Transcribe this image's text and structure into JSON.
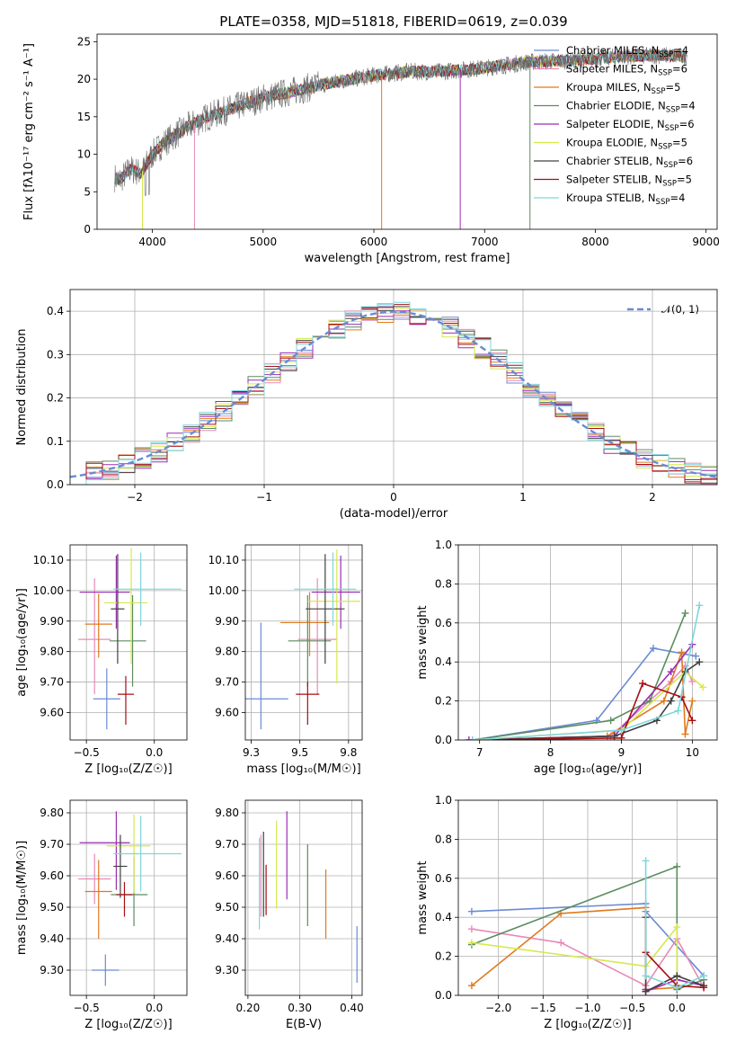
{
  "title": "PLATE=0358, MJD=51818, FIBERID=0619, z=0.039",
  "colors": [
    "#6a8bd4",
    "#e88ab8",
    "#e07a1f",
    "#5b8c5f",
    "#9a2fb5",
    "#d6e84a",
    "#404040",
    "#a50f14",
    "#7fd6dc"
  ],
  "legend": [
    {
      "label": "Chabrier MILES, N",
      "sub": "SSP",
      "suffix": "=4"
    },
    {
      "label": "Salpeter MILES, N",
      "sub": "SSP",
      "suffix": "=6"
    },
    {
      "label": "Kroupa MILES, N",
      "sub": "SSP",
      "suffix": "=5"
    },
    {
      "label": "Chabrier ELODIE, N",
      "sub": "SSP",
      "suffix": "=4"
    },
    {
      "label": "Salpeter ELODIE, N",
      "sub": "SSP",
      "suffix": "=6"
    },
    {
      "label": "Kroupa ELODIE, N",
      "sub": "SSP",
      "suffix": "=5"
    },
    {
      "label": "Chabrier STELIB, N",
      "sub": "SSP",
      "suffix": "=6"
    },
    {
      "label": "Salpeter STELIB, N",
      "sub": "SSP",
      "suffix": "=5"
    },
    {
      "label": "Kroupa STELIB, N",
      "sub": "SSP",
      "suffix": "=4"
    }
  ],
  "chart_data": [
    {
      "id": "spectrum",
      "type": "line",
      "xlabel": "wavelength [Angstrom, rest frame]",
      "ylabel": "Flux [fλ10⁻¹⁷ erg cm⁻² s⁻¹ A⁻¹]",
      "xlim": [
        3500,
        9100
      ],
      "ylim": [
        0,
        26
      ],
      "xticks": [
        4000,
        5000,
        6000,
        7000,
        8000,
        9000
      ],
      "yticks": [
        0,
        5,
        10,
        15,
        20,
        25
      ],
      "continuum": [
        [
          3650,
          7
        ],
        [
          3700,
          6.5
        ],
        [
          3800,
          8
        ],
        [
          3900,
          7.5
        ],
        [
          4000,
          10
        ],
        [
          4100,
          11.5
        ],
        [
          4300,
          13.5
        ],
        [
          4500,
          15
        ],
        [
          4700,
          16
        ],
        [
          5000,
          17.5
        ],
        [
          5300,
          18.5
        ],
        [
          5600,
          19.5
        ],
        [
          6000,
          20.5
        ],
        [
          6300,
          21
        ],
        [
          6600,
          21
        ],
        [
          7000,
          21.5
        ],
        [
          7400,
          22.3
        ],
        [
          7800,
          22.5
        ],
        [
          8200,
          23
        ],
        [
          8600,
          23.2
        ],
        [
          8830,
          23
        ]
      ]
    },
    {
      "id": "residuals",
      "type": "step",
      "xlabel": "(data-model)/error",
      "ylabel": "Normed distribution",
      "xlim": [
        -2.5,
        2.5
      ],
      "ylim": [
        0,
        0.45
      ],
      "xticks": [
        -2,
        -1,
        0,
        1,
        2
      ],
      "yticks": [
        0.0,
        0.1,
        0.2,
        0.3,
        0.4
      ],
      "gaussian_label": "𝒩(0, 1)"
    },
    {
      "id": "age-vs-Z",
      "type": "scatter",
      "xlabel": "Z [log₁₀(Z/Z☉)]",
      "ylabel": "age  [log₁₀(age/yr)]",
      "xlim": [
        -0.62,
        0.24
      ],
      "ylim": [
        9.51,
        10.15
      ],
      "xticks": [
        -0.5,
        0.0
      ],
      "yticks": [
        9.6,
        9.7,
        9.8,
        9.9,
        10.0,
        10.1
      ],
      "points": [
        {
          "x": -0.35,
          "y": 9.645,
          "xerr": [
            0.1,
            0.1
          ],
          "yerr": [
            0.1,
            0.1
          ]
        },
        {
          "x": -0.44,
          "y": 9.84,
          "xerr": [
            0.12,
            0.12
          ],
          "yerr": [
            0.18,
            0.2
          ]
        },
        {
          "x": -0.41,
          "y": 9.89,
          "xerr": [
            0.1,
            0.1
          ],
          "yerr": [
            0.11,
            0.1
          ]
        },
        {
          "x": -0.16,
          "y": 9.835,
          "xerr": [
            0.17,
            0.1
          ],
          "yerr": [
            0.15,
            0.15
          ]
        },
        {
          "x": -0.28,
          "y": 9.995,
          "xerr": [
            0.27,
            0.1
          ],
          "yerr": [
            0.12,
            0.12
          ]
        },
        {
          "x": -0.17,
          "y": 9.96,
          "xerr": [
            0.2,
            0.12
          ],
          "yerr": [
            0.2,
            0.18
          ]
        },
        {
          "x": -0.27,
          "y": 9.94,
          "xerr": [
            0.05,
            0.05
          ],
          "yerr": [
            0.18,
            0.18
          ]
        },
        {
          "x": -0.21,
          "y": 9.66,
          "xerr": [
            0.06,
            0.06
          ],
          "yerr": [
            0.1,
            0.06
          ]
        },
        {
          "x": -0.1,
          "y": 10.005,
          "xerr": [
            0.2,
            0.3
          ],
          "yerr": [
            0.12,
            0.12
          ]
        }
      ]
    },
    {
      "id": "age-vs-mass",
      "type": "scatter",
      "xlabel": "mass [log₁₀(M/M☉)]",
      "ylabel": "",
      "xlim": [
        9.22,
        9.82
      ],
      "ylim": [
        9.51,
        10.15
      ],
      "xticks": [
        9.25,
        9.5,
        9.75
      ],
      "yticks": [
        9.6,
        9.7,
        9.8,
        9.9,
        10.0,
        10.1
      ],
      "points": [
        {
          "x": 9.3,
          "y": 9.645,
          "xerr": [
            0.09,
            0.14
          ],
          "yerr": [
            0.1,
            0.25
          ]
        },
        {
          "x": 9.59,
          "y": 9.84,
          "xerr": [
            0.1,
            0.1
          ],
          "yerr": [
            0.18,
            0.2
          ]
        },
        {
          "x": 9.55,
          "y": 9.895,
          "xerr": [
            0.15,
            0.1
          ],
          "yerr": [
            0.11,
            0.1
          ]
        },
        {
          "x": 9.54,
          "y": 9.835,
          "xerr": [
            0.1,
            0.12
          ],
          "yerr": [
            0.15,
            0.15
          ]
        },
        {
          "x": 9.71,
          "y": 9.995,
          "xerr": [
            0.15,
            0.1
          ],
          "yerr": [
            0.12,
            0.12
          ]
        },
        {
          "x": 9.69,
          "y": 9.965,
          "xerr": [
            0.15,
            0.12
          ],
          "yerr": [
            0.27,
            0.17
          ]
        },
        {
          "x": 9.63,
          "y": 9.94,
          "xerr": [
            0.1,
            0.1
          ],
          "yerr": [
            0.18,
            0.18
          ]
        },
        {
          "x": 9.54,
          "y": 9.66,
          "xerr": [
            0.06,
            0.06
          ],
          "yerr": [
            0.1,
            0.04
          ]
        },
        {
          "x": 9.67,
          "y": 10.005,
          "xerr": [
            0.2,
            0.12
          ],
          "yerr": [
            0.12,
            0.12
          ]
        }
      ]
    },
    {
      "id": "weight-vs-age",
      "type": "line",
      "xlabel": "age  [log₁₀(age/yr)]",
      "ylabel": "mass weight",
      "xlim": [
        6.7,
        10.35
      ],
      "ylim": [
        0,
        1
      ],
      "xticks": [
        7,
        8,
        9,
        10
      ],
      "yticks": [
        0.0,
        0.2,
        0.4,
        0.6,
        0.8,
        1.0
      ],
      "series": [
        {
          "points": [
            [
              6.9,
              0.0
            ],
            [
              8.65,
              0.1
            ],
            [
              9.45,
              0.47
            ],
            [
              10.05,
              0.43
            ]
          ]
        },
        {
          "points": [
            [
              6.9,
              0.0
            ],
            [
              8.85,
              0.02
            ],
            [
              9.7,
              0.3
            ],
            [
              9.9,
              0.38
            ],
            [
              10.0,
              0.3
            ]
          ]
        },
        {
          "points": [
            [
              6.9,
              0.0
            ],
            [
              8.8,
              0.02
            ],
            [
              9.6,
              0.2
            ],
            [
              9.85,
              0.45
            ],
            [
              9.9,
              0.03
            ],
            [
              10.0,
              0.2
            ]
          ]
        },
        {
          "points": [
            [
              6.9,
              0.0
            ],
            [
              8.85,
              0.1
            ],
            [
              9.4,
              0.2
            ],
            [
              9.9,
              0.65
            ]
          ]
        },
        {
          "points": [
            [
              6.85,
              0.0
            ],
            [
              8.9,
              0.02
            ],
            [
              9.7,
              0.35
            ],
            [
              10.0,
              0.49
            ]
          ]
        },
        {
          "points": [
            [
              6.9,
              0.0
            ],
            [
              9.0,
              0.05
            ],
            [
              9.9,
              0.35
            ],
            [
              10.15,
              0.27
            ]
          ]
        },
        {
          "points": [
            [
              6.9,
              0.0
            ],
            [
              8.9,
              0.02
            ],
            [
              9.5,
              0.1
            ],
            [
              9.7,
              0.2
            ],
            [
              9.9,
              0.35
            ],
            [
              10.1,
              0.4
            ]
          ]
        },
        {
          "points": [
            [
              6.9,
              0.0
            ],
            [
              9.0,
              0.01
            ],
            [
              9.3,
              0.29
            ],
            [
              9.85,
              0.22
            ],
            [
              10.0,
              0.1
            ]
          ]
        },
        {
          "points": [
            [
              6.9,
              0.0
            ],
            [
              9.0,
              0.05
            ],
            [
              9.8,
              0.15
            ],
            [
              10.1,
              0.69
            ]
          ]
        }
      ]
    },
    {
      "id": "mass-vs-Z",
      "type": "scatter",
      "xlabel": "Z [log₁₀(Z/Z☉)]",
      "ylabel": "mass [log₁₀(M/M☉)]",
      "xlim": [
        -0.62,
        0.24
      ],
      "ylim": [
        9.22,
        9.84
      ],
      "xticks": [
        -0.5,
        0.0
      ],
      "yticks": [
        9.3,
        9.4,
        9.5,
        9.6,
        9.7,
        9.8
      ],
      "points": [
        {
          "x": -0.36,
          "y": 9.3,
          "xerr": [
            0.1,
            0.1
          ],
          "yerr": [
            0.05,
            0.05
          ]
        },
        {
          "x": -0.44,
          "y": 9.59,
          "xerr": [
            0.12,
            0.12
          ],
          "yerr": [
            0.08,
            0.08
          ]
        },
        {
          "x": -0.41,
          "y": 9.55,
          "xerr": [
            0.1,
            0.1
          ],
          "yerr": [
            0.15,
            0.1
          ]
        },
        {
          "x": -0.15,
          "y": 9.54,
          "xerr": [
            0.17,
            0.1
          ],
          "yerr": [
            0.1,
            0.12
          ]
        },
        {
          "x": -0.28,
          "y": 9.705,
          "xerr": [
            0.27,
            0.1
          ],
          "yerr": [
            0.15,
            0.1
          ]
        },
        {
          "x": -0.15,
          "y": 9.695,
          "xerr": [
            0.2,
            0.12
          ],
          "yerr": [
            0.15,
            0.1
          ]
        },
        {
          "x": -0.25,
          "y": 9.63,
          "xerr": [
            0.05,
            0.05
          ],
          "yerr": [
            0.1,
            0.1
          ]
        },
        {
          "x": -0.22,
          "y": 9.54,
          "xerr": [
            0.06,
            0.06
          ],
          "yerr": [
            0.07,
            0.04
          ]
        },
        {
          "x": -0.1,
          "y": 9.67,
          "xerr": [
            0.2,
            0.3
          ],
          "yerr": [
            0.12,
            0.12
          ]
        }
      ]
    },
    {
      "id": "mass-vs-ebv",
      "type": "errorbar",
      "xlabel": "E(B-V)",
      "ylabel": "",
      "xlim": [
        0.195,
        0.42
      ],
      "ylim": [
        9.22,
        9.84
      ],
      "xticks": [
        0.2,
        0.3,
        0.4
      ],
      "yticks": [
        9.3,
        9.4,
        9.5,
        9.6,
        9.7,
        9.8
      ],
      "points": [
        {
          "x": 0.41,
          "y": 9.35,
          "yerr": [
            0.09,
            0.09
          ]
        },
        {
          "x": 0.225,
          "y": 9.6,
          "yerr": [
            0.13,
            0.13
          ]
        },
        {
          "x": 0.35,
          "y": 9.51,
          "yerr": [
            0.11,
            0.11
          ]
        },
        {
          "x": 0.315,
          "y": 9.57,
          "yerr": [
            0.13,
            0.13
          ]
        },
        {
          "x": 0.275,
          "y": 9.665,
          "yerr": [
            0.14,
            0.14
          ]
        },
        {
          "x": 0.255,
          "y": 9.635,
          "yerr": [
            0.14,
            0.14
          ]
        },
        {
          "x": 0.23,
          "y": 9.605,
          "yerr": [
            0.135,
            0.135
          ]
        },
        {
          "x": 0.235,
          "y": 9.555,
          "yerr": [
            0.08,
            0.08
          ]
        },
        {
          "x": 0.222,
          "y": 9.575,
          "yerr": [
            0.145,
            0.145
          ]
        }
      ]
    },
    {
      "id": "weight-vs-Z",
      "type": "line",
      "xlabel": "Z [log₁₀(Z/Z☉)]",
      "ylabel": "mass weight",
      "xlim": [
        -2.45,
        0.45
      ],
      "ylim": [
        0,
        1
      ],
      "xticks": [
        -2.0,
        -1.5,
        -1.0,
        -0.5,
        0.0
      ],
      "yticks": [
        0.0,
        0.2,
        0.4,
        0.6,
        0.8,
        1.0
      ],
      "series": [
        {
          "points": [
            [
              -2.3,
              0.43
            ],
            [
              -0.35,
              0.47
            ],
            [
              -0.35,
              0.43
            ],
            [
              0.3,
              0.1
            ]
          ]
        },
        {
          "points": [
            [
              -2.3,
              0.34
            ],
            [
              -1.3,
              0.27
            ],
            [
              -0.35,
              0.05
            ],
            [
              0.0,
              0.29
            ],
            [
              0.3,
              0.04
            ]
          ]
        },
        {
          "points": [
            [
              -2.3,
              0.05
            ],
            [
              -1.3,
              0.42
            ],
            [
              -0.35,
              0.45
            ],
            [
              -0.35,
              0.03
            ],
            [
              0.0,
              0.04
            ]
          ]
        },
        {
          "points": [
            [
              -2.3,
              0.26
            ],
            [
              0.0,
              0.66
            ],
            [
              0.0,
              0.03
            ],
            [
              0.3,
              0.08
            ]
          ]
        },
        {
          "points": [
            [
              -0.35,
              0.03
            ],
            [
              -0.35,
              0.02
            ],
            [
              0.0,
              0.08
            ],
            [
              0.3,
              0.05
            ]
          ]
        },
        {
          "points": [
            [
              -2.3,
              0.27
            ],
            [
              -0.35,
              0.15
            ],
            [
              0.0,
              0.35
            ],
            [
              0.0,
              0.05
            ]
          ]
        },
        {
          "points": [
            [
              -0.35,
              0.4
            ],
            [
              -0.35,
              0.02
            ],
            [
              0.0,
              0.1
            ],
            [
              0.3,
              0.05
            ]
          ]
        },
        {
          "points": [
            [
              -0.35,
              0.22
            ],
            [
              0.0,
              0.05
            ],
            [
              0.3,
              0.04
            ]
          ]
        },
        {
          "points": [
            [
              -0.35,
              0.69
            ],
            [
              -0.35,
              0.1
            ],
            [
              0.0,
              0.04
            ],
            [
              0.3,
              0.1
            ]
          ]
        }
      ]
    }
  ]
}
